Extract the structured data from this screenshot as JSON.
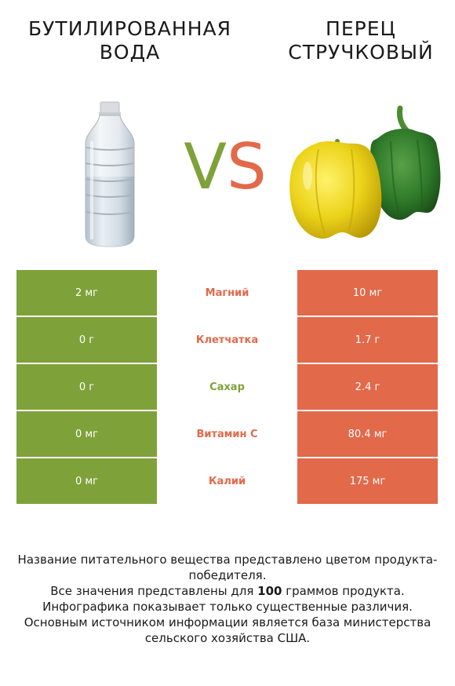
{
  "products": {
    "left": {
      "name": "БУТИЛИРОВАННАЯ ВОДА",
      "color": "#7fa13a",
      "image": "water-bottle"
    },
    "right": {
      "name": "ПЕРЕЦ СТРУЧКОВЫЙ",
      "color": "#e2694a",
      "image": "bell-peppers"
    }
  },
  "vs": {
    "v": "V",
    "s": "S"
  },
  "nutrients": [
    {
      "name": "Магний",
      "left": "2 мг",
      "right": "10 мг",
      "winner_color": "#e2694a"
    },
    {
      "name": "Клетчатка",
      "left": "0 г",
      "right": "1.7 г",
      "winner_color": "#e2694a"
    },
    {
      "name": "Сахар",
      "left": "0 г",
      "right": "2.4 г",
      "winner_color": "#7fa13a"
    },
    {
      "name": "Витамин C",
      "left": "0 мг",
      "right": "80.4 мг",
      "winner_color": "#e2694a"
    },
    {
      "name": "Калий",
      "left": "0 мг",
      "right": "175 мг",
      "winner_color": "#e2694a"
    }
  ],
  "footer": {
    "line1": "Название питательного вещества представлено цветом продукта-победителя.",
    "line2_before": "Все значения представлены для ",
    "line2_bold": "100",
    "line2_after": " граммов продукта.",
    "line3": "Инфографика показывает только существенные различия.",
    "line4": "Основным источником информации является база министерства сельского хозяйства США."
  }
}
